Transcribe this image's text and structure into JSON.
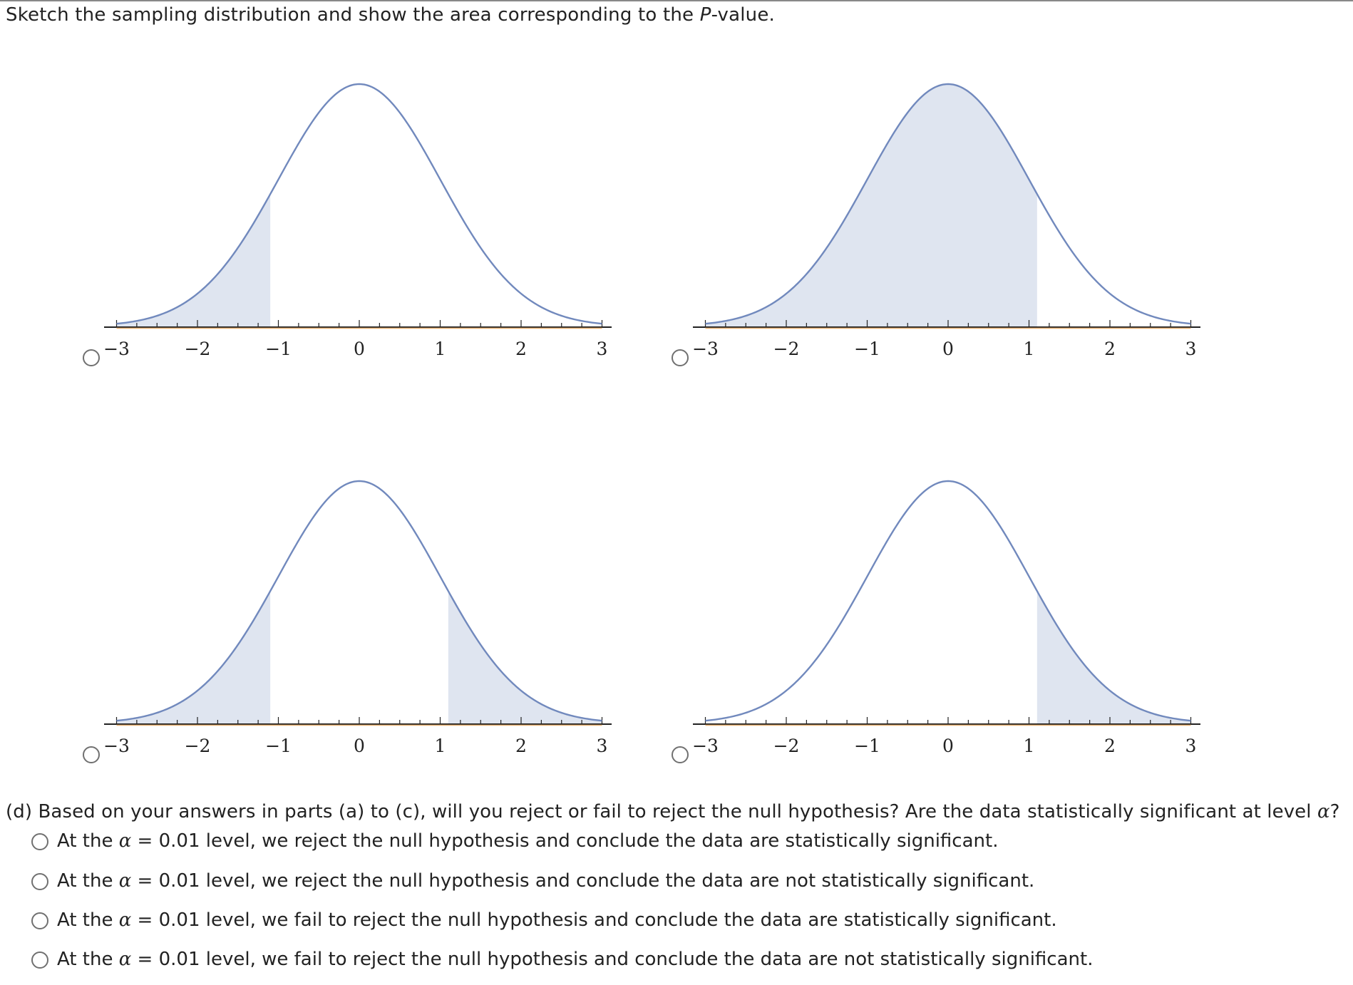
{
  "prompt": {
    "before": "Sketch the sampling distribution and show the area corresponding to the ",
    "pvar": "P",
    "after": "-value."
  },
  "colors": {
    "curve": "#7189bd",
    "shade": "#dfe5f0",
    "axis": "#222222",
    "baseline_accent": "#e8b070"
  },
  "tick_labels": [
    "−3",
    "−2",
    "−1",
    "0",
    "1",
    "2",
    "3"
  ],
  "chart_data": [
    {
      "type": "area",
      "curve": "standard normal density",
      "x_range": [
        -3,
        3
      ],
      "shaded": [
        [
          -3,
          -1.1
        ]
      ],
      "ticks": [
        -3,
        -2,
        -1,
        0,
        1,
        2,
        3
      ]
    },
    {
      "type": "area",
      "curve": "standard normal density",
      "x_range": [
        -3,
        3
      ],
      "shaded": [
        [
          -3,
          1.1
        ]
      ],
      "ticks": [
        -3,
        -2,
        -1,
        0,
        1,
        2,
        3
      ]
    },
    {
      "type": "area",
      "curve": "standard normal density",
      "x_range": [
        -3,
        3
      ],
      "shaded": [
        [
          -3,
          -1.1
        ],
        [
          1.1,
          3
        ]
      ],
      "ticks": [
        -3,
        -2,
        -1,
        0,
        1,
        2,
        3
      ]
    },
    {
      "type": "area",
      "curve": "standard normal density",
      "x_range": [
        -3,
        3
      ],
      "shaded": [
        [
          1.1,
          3
        ]
      ],
      "ticks": [
        -3,
        -2,
        -1,
        0,
        1,
        2,
        3
      ]
    }
  ],
  "question": {
    "text": "(d) Based on your answers in parts (a) to (c), will you reject or fail to reject the null hypothesis? Are the data statistically significant at level ",
    "alpha": "α",
    "end": "?"
  },
  "choices": [
    {
      "pre": "At the ",
      "alpha": "α",
      "post": " = 0.01 level, we reject the null hypothesis and conclude the data are statistically significant."
    },
    {
      "pre": "At the ",
      "alpha": "α",
      "post": " = 0.01 level, we reject the null hypothesis and conclude the data are not statistically significant."
    },
    {
      "pre": "At the ",
      "alpha": "α",
      "post": " = 0.01 level, we fail to reject the null hypothesis and conclude the data are statistically significant."
    },
    {
      "pre": "At the ",
      "alpha": "α",
      "post": " = 0.01 level, we fail to reject the null hypothesis and conclude the data are not statistically significant."
    }
  ]
}
